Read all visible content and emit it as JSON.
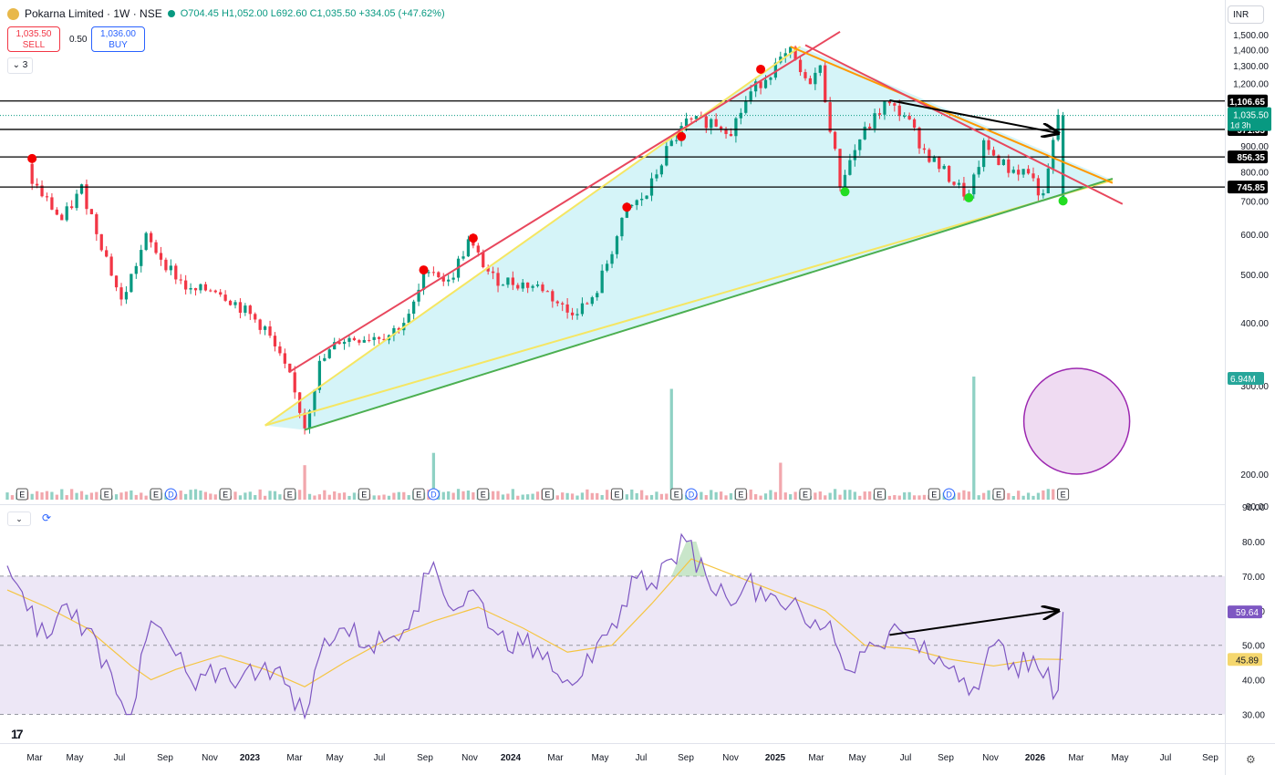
{
  "header": {
    "symbol": "Pokarna Limited · 1W · NSE",
    "ohlc": "O704.45 H1,052.00 L692.60 C1,035.50 +334.05 (+47.62%)"
  },
  "trade": {
    "sell_price": "1,035.50",
    "sell_label": "SELL",
    "spread": "0.50",
    "buy_price": "1,036.00",
    "buy_label": "BUY"
  },
  "indicators_count": "3",
  "currency": "INR",
  "colors": {
    "up": "#089981",
    "down": "#f23645",
    "triangle_fill": "#b2ebf2",
    "rsi_band": "#ede7f6",
    "rsi_line": "#7e57c2",
    "rsi_ma": "#f5c542",
    "volume_circle": "#e1bee7"
  },
  "chart_data": [
    {
      "type": "candlestick",
      "title": "Pokarna Limited · 1W · NSE",
      "interval": "1W",
      "y_scale": "log",
      "ylim": [
        90,
        1550
      ],
      "y_ticks": [
        90,
        200,
        300,
        400,
        500,
        600,
        700,
        800,
        900,
        1000,
        1200,
        1300,
        1400,
        1500
      ],
      "y_tick_labels": [
        "90.00",
        "200.00",
        "300.00",
        "400.00",
        "500.00",
        "600.00",
        "700.00",
        "800.00",
        "900.00",
        "1,000.00",
        "1,200.00",
        "1,300.00",
        "1,400.00",
        "1,500.00"
      ],
      "x_tick_labels": [
        "Mar",
        "May",
        "Jul",
        "Sep",
        "Nov",
        "2023",
        "Mar",
        "May",
        "Jul",
        "Sep",
        "Nov",
        "2024",
        "Mar",
        "May",
        "Jul",
        "Sep",
        "Nov",
        "2025",
        "Mar",
        "May",
        "Jul",
        "Sep",
        "Nov",
        "2026",
        "Mar",
        "May",
        "Jul",
        "Sep"
      ],
      "close_path": [
        {
          "date": "2022-02-14",
          "close": 790
        },
        {
          "date": "2022-03-07",
          "close": 720
        },
        {
          "date": "2022-04-04",
          "close": 640
        },
        {
          "date": "2022-05-02",
          "close": 740
        },
        {
          "date": "2022-06-06",
          "close": 540
        },
        {
          "date": "2022-06-27",
          "close": 440
        },
        {
          "date": "2022-08-01",
          "close": 590
        },
        {
          "date": "2022-09-05",
          "close": 510
        },
        {
          "date": "2022-10-03",
          "close": 460
        },
        {
          "date": "2022-11-07",
          "close": 470
        },
        {
          "date": "2022-12-12",
          "close": 430
        },
        {
          "date": "2023-01-16",
          "close": 390
        },
        {
          "date": "2023-02-20",
          "close": 310
        },
        {
          "date": "2023-03-13",
          "close": 250
        },
        {
          "date": "2023-04-03",
          "close": 330
        },
        {
          "date": "2023-05-01",
          "close": 370
        },
        {
          "date": "2023-06-05",
          "close": 375
        },
        {
          "date": "2023-07-10",
          "close": 380
        },
        {
          "date": "2023-08-07",
          "close": 410
        },
        {
          "date": "2023-09-04",
          "close": 520
        },
        {
          "date": "2023-10-02",
          "close": 480
        },
        {
          "date": "2023-10-30",
          "close": 580
        },
        {
          "date": "2023-12-04",
          "close": 490
        },
        {
          "date": "2024-01-08",
          "close": 480
        },
        {
          "date": "2024-02-12",
          "close": 470
        },
        {
          "date": "2024-03-18",
          "close": 420
        },
        {
          "date": "2024-04-22",
          "close": 440
        },
        {
          "date": "2024-05-20",
          "close": 560
        },
        {
          "date": "2024-06-10",
          "close": 670
        },
        {
          "date": "2024-07-08",
          "close": 720
        },
        {
          "date": "2024-08-05",
          "close": 880
        },
        {
          "date": "2024-09-02",
          "close": 1000
        },
        {
          "date": "2024-10-07",
          "close": 1010
        },
        {
          "date": "2024-11-04",
          "close": 970
        },
        {
          "date": "2024-12-02",
          "close": 1150
        },
        {
          "date": "2025-01-06",
          "close": 1300
        },
        {
          "date": "2025-01-27",
          "close": 1380
        },
        {
          "date": "2025-02-17",
          "close": 1200
        },
        {
          "date": "2025-03-10",
          "close": 1280
        },
        {
          "date": "2025-04-07",
          "close": 760
        },
        {
          "date": "2025-05-05",
          "close": 930
        },
        {
          "date": "2025-06-09",
          "close": 1090
        },
        {
          "date": "2025-07-07",
          "close": 1040
        },
        {
          "date": "2025-08-04",
          "close": 880
        },
        {
          "date": "2025-09-08",
          "close": 780
        },
        {
          "date": "2025-10-06",
          "close": 710
        },
        {
          "date": "2025-10-27",
          "close": 900
        },
        {
          "date": "2025-12-01",
          "close": 810
        },
        {
          "date": "2025-12-29",
          "close": 800
        },
        {
          "date": "2026-01-19",
          "close": 705
        },
        {
          "date": "2026-02-09",
          "close": 1035.5
        }
      ],
      "last": {
        "open": 704.45,
        "high": 1052.0,
        "low": 692.6,
        "close": 1035.5,
        "change": 334.05,
        "change_pct": 47.62
      },
      "last_price_label": "1,035.50",
      "last_price_countdown": "1d 3h",
      "horizontal_levels": [
        {
          "value": 1106.65,
          "label": "1,106.65"
        },
        {
          "value": 971.35,
          "label": "971.35"
        },
        {
          "value": 856.35,
          "label": "856.35"
        },
        {
          "value": 745.85,
          "label": "745.85"
        }
      ],
      "trendlines": [
        {
          "name": "rising support",
          "color": "#f5e663",
          "points": [
            {
              "date": "2023-01-09",
              "price": 250
            },
            {
              "date": "2026-04-20",
              "price": 770
            }
          ]
        },
        {
          "name": "rising support (green)",
          "color": "#4caf50",
          "points": [
            {
              "date": "2023-03-06",
              "price": 245
            },
            {
              "date": "2026-04-20",
              "price": 775
            }
          ]
        },
        {
          "name": "rising resistance",
          "color": "#f5e663",
          "points": [
            {
              "date": "2023-01-09",
              "price": 250
            },
            {
              "date": "2025-02-03",
              "price": 1420
            }
          ]
        },
        {
          "name": "rising resistance (red)",
          "color": "#e8475d",
          "points": [
            {
              "date": "2023-02-13",
              "price": 320
            },
            {
              "date": "2025-03-31",
              "price": 1520
            }
          ]
        },
        {
          "name": "falling resistance",
          "color": "#ff9800",
          "points": [
            {
              "date": "2025-01-20",
              "price": 1420
            },
            {
              "date": "2026-04-20",
              "price": 760
            }
          ]
        },
        {
          "name": "falling resistance (red)",
          "color": "#e8475d",
          "points": [
            {
              "date": "2025-02-10",
              "price": 1430
            },
            {
              "date": "2026-05-04",
              "price": 690
            }
          ]
        }
      ],
      "arrow": {
        "from": {
          "date": "2025-06-09",
          "price": 1110
        },
        "to": {
          "date": "2026-02-02",
          "price": 955
        }
      },
      "swing_highs": [
        {
          "date": "2022-02-14",
          "price": 850
        },
        {
          "date": "2023-08-21",
          "price": 510
        },
        {
          "date": "2023-10-30",
          "price": 590
        },
        {
          "date": "2024-06-03",
          "price": 680
        },
        {
          "date": "2024-08-19",
          "price": 940
        },
        {
          "date": "2024-12-09",
          "price": 1280
        }
      ],
      "swing_lows": [
        {
          "date": "2025-04-07",
          "price": 730
        },
        {
          "date": "2025-09-29",
          "price": 710
        },
        {
          "date": "2026-02-09",
          "price": 700
        }
      ],
      "events": [
        {
          "date": "2022-01-31",
          "type": "E"
        },
        {
          "date": "2022-05-30",
          "type": "E"
        },
        {
          "date": "2022-08-08",
          "type": "E"
        },
        {
          "date": "2022-08-29",
          "type": "D"
        },
        {
          "date": "2022-11-14",
          "type": "E"
        },
        {
          "date": "2023-02-13",
          "type": "E"
        },
        {
          "date": "2023-05-29",
          "type": "E"
        },
        {
          "date": "2023-08-14",
          "type": "E"
        },
        {
          "date": "2023-09-04",
          "type": "D"
        },
        {
          "date": "2023-11-13",
          "type": "E"
        },
        {
          "date": "2024-02-12",
          "type": "E"
        },
        {
          "date": "2024-05-20",
          "type": "E"
        },
        {
          "date": "2024-08-12",
          "type": "E"
        },
        {
          "date": "2024-09-02",
          "type": "D"
        },
        {
          "date": "2024-11-11",
          "type": "E"
        },
        {
          "date": "2025-02-10",
          "type": "E"
        },
        {
          "date": "2025-05-26",
          "type": "E"
        },
        {
          "date": "2025-08-11",
          "type": "E"
        },
        {
          "date": "2025-09-01",
          "type": "D"
        },
        {
          "date": "2025-11-10",
          "type": "E"
        },
        {
          "date": "2026-02-09",
          "type": "E"
        }
      ],
      "volume": {
        "last_label": "6.94M",
        "spikes": [
          {
            "date": "2023-03-06",
            "value": 0.28
          },
          {
            "date": "2023-09-04",
            "value": 0.38
          },
          {
            "date": "2024-08-05",
            "value": 0.9
          },
          {
            "date": "2025-01-06",
            "value": 0.3
          },
          {
            "date": "2025-10-06",
            "value": 1.0
          },
          {
            "date": "2026-02-09",
            "value": 1.0
          }
        ],
        "highlight_circle": {
          "date": "2026-02-09"
        }
      }
    },
    {
      "type": "line",
      "title": "RSI",
      "ylim": [
        25,
        87
      ],
      "y_ticks": [
        30,
        40,
        50,
        60,
        70,
        80
      ],
      "y_tick_labels": [
        "30.00",
        "40.00",
        "50.00",
        "60.00",
        "70.00",
        "80.00"
      ],
      "band": [
        30,
        70
      ],
      "midline": 50,
      "last_value_label": "59.64",
      "ma_value_label": "45.89",
      "series": [
        {
          "name": "RSI",
          "points": [
            {
              "date": "2022-01-10",
              "y": 73
            },
            {
              "date": "2022-02-07",
              "y": 60
            },
            {
              "date": "2022-03-07",
              "y": 52
            },
            {
              "date": "2022-04-04",
              "y": 62
            },
            {
              "date": "2022-05-02",
              "y": 55
            },
            {
              "date": "2022-06-06",
              "y": 42
            },
            {
              "date": "2022-07-04",
              "y": 30
            },
            {
              "date": "2022-08-01",
              "y": 57
            },
            {
              "date": "2022-09-05",
              "y": 47
            },
            {
              "date": "2022-10-03",
              "y": 37
            },
            {
              "date": "2022-11-07",
              "y": 43
            },
            {
              "date": "2022-12-05",
              "y": 40
            },
            {
              "date": "2023-01-09",
              "y": 45
            },
            {
              "date": "2023-02-13",
              "y": 38
            },
            {
              "date": "2023-03-06",
              "y": 29
            },
            {
              "date": "2023-04-03",
              "y": 52
            },
            {
              "date": "2023-05-01",
              "y": 55
            },
            {
              "date": "2023-06-05",
              "y": 50
            },
            {
              "date": "2023-07-03",
              "y": 52
            },
            {
              "date": "2023-08-07",
              "y": 60
            },
            {
              "date": "2023-09-04",
              "y": 74
            },
            {
              "date": "2023-10-02",
              "y": 60
            },
            {
              "date": "2023-10-30",
              "y": 66
            },
            {
              "date": "2023-12-04",
              "y": 53
            },
            {
              "date": "2024-01-08",
              "y": 50
            },
            {
              "date": "2024-02-12",
              "y": 48
            },
            {
              "date": "2024-03-11",
              "y": 40
            },
            {
              "date": "2024-04-15",
              "y": 45
            },
            {
              "date": "2024-05-20",
              "y": 55
            },
            {
              "date": "2024-06-10",
              "y": 70
            },
            {
              "date": "2024-07-08",
              "y": 68
            },
            {
              "date": "2024-08-05",
              "y": 75
            },
            {
              "date": "2024-08-26",
              "y": 80
            },
            {
              "date": "2024-09-23",
              "y": 70
            },
            {
              "date": "2024-10-21",
              "y": 64
            },
            {
              "date": "2024-11-18",
              "y": 68
            },
            {
              "date": "2024-12-23",
              "y": 65
            },
            {
              "date": "2025-01-20",
              "y": 62
            },
            {
              "date": "2025-02-17",
              "y": 55
            },
            {
              "date": "2025-03-17",
              "y": 57
            },
            {
              "date": "2025-04-07",
              "y": 43
            },
            {
              "date": "2025-05-05",
              "y": 48
            },
            {
              "date": "2025-06-09",
              "y": 54
            },
            {
              "date": "2025-07-07",
              "y": 52
            },
            {
              "date": "2025-08-04",
              "y": 46
            },
            {
              "date": "2025-09-08",
              "y": 44
            },
            {
              "date": "2025-10-06",
              "y": 38
            },
            {
              "date": "2025-11-03",
              "y": 50
            },
            {
              "date": "2025-12-01",
              "y": 45
            },
            {
              "date": "2026-01-05",
              "y": 43
            },
            {
              "date": "2026-02-02",
              "y": 37
            },
            {
              "date": "2026-02-09",
              "y": 59.64
            }
          ]
        },
        {
          "name": "RSI-based MA",
          "points": [
            {
              "date": "2022-01-10",
              "y": 66
            },
            {
              "date": "2022-03-07",
              "y": 61
            },
            {
              "date": "2022-05-02",
              "y": 55
            },
            {
              "date": "2022-07-04",
              "y": 44
            },
            {
              "date": "2022-08-01",
              "y": 40
            },
            {
              "date": "2022-09-05",
              "y": 43
            },
            {
              "date": "2022-11-07",
              "y": 47
            },
            {
              "date": "2023-01-09",
              "y": 43
            },
            {
              "date": "2023-03-06",
              "y": 38
            },
            {
              "date": "2023-05-01",
              "y": 45
            },
            {
              "date": "2023-07-03",
              "y": 52
            },
            {
              "date": "2023-09-04",
              "y": 57
            },
            {
              "date": "2023-11-06",
              "y": 61
            },
            {
              "date": "2024-01-08",
              "y": 55
            },
            {
              "date": "2024-03-11",
              "y": 48
            },
            {
              "date": "2024-05-13",
              "y": 50
            },
            {
              "date": "2024-07-08",
              "y": 62
            },
            {
              "date": "2024-09-02",
              "y": 75
            },
            {
              "date": "2024-11-04",
              "y": 70
            },
            {
              "date": "2025-01-06",
              "y": 65
            },
            {
              "date": "2025-03-10",
              "y": 60
            },
            {
              "date": "2025-05-05",
              "y": 50
            },
            {
              "date": "2025-07-07",
              "y": 49
            },
            {
              "date": "2025-09-01",
              "y": 46
            },
            {
              "date": "2025-11-03",
              "y": 44
            },
            {
              "date": "2026-01-05",
              "y": 46
            },
            {
              "date": "2026-02-09",
              "y": 45.89
            }
          ]
        }
      ],
      "arrow": {
        "from": {
          "date": "2025-06-09",
          "y": 53
        },
        "to": {
          "date": "2026-02-02",
          "y": 60
        }
      }
    }
  ]
}
